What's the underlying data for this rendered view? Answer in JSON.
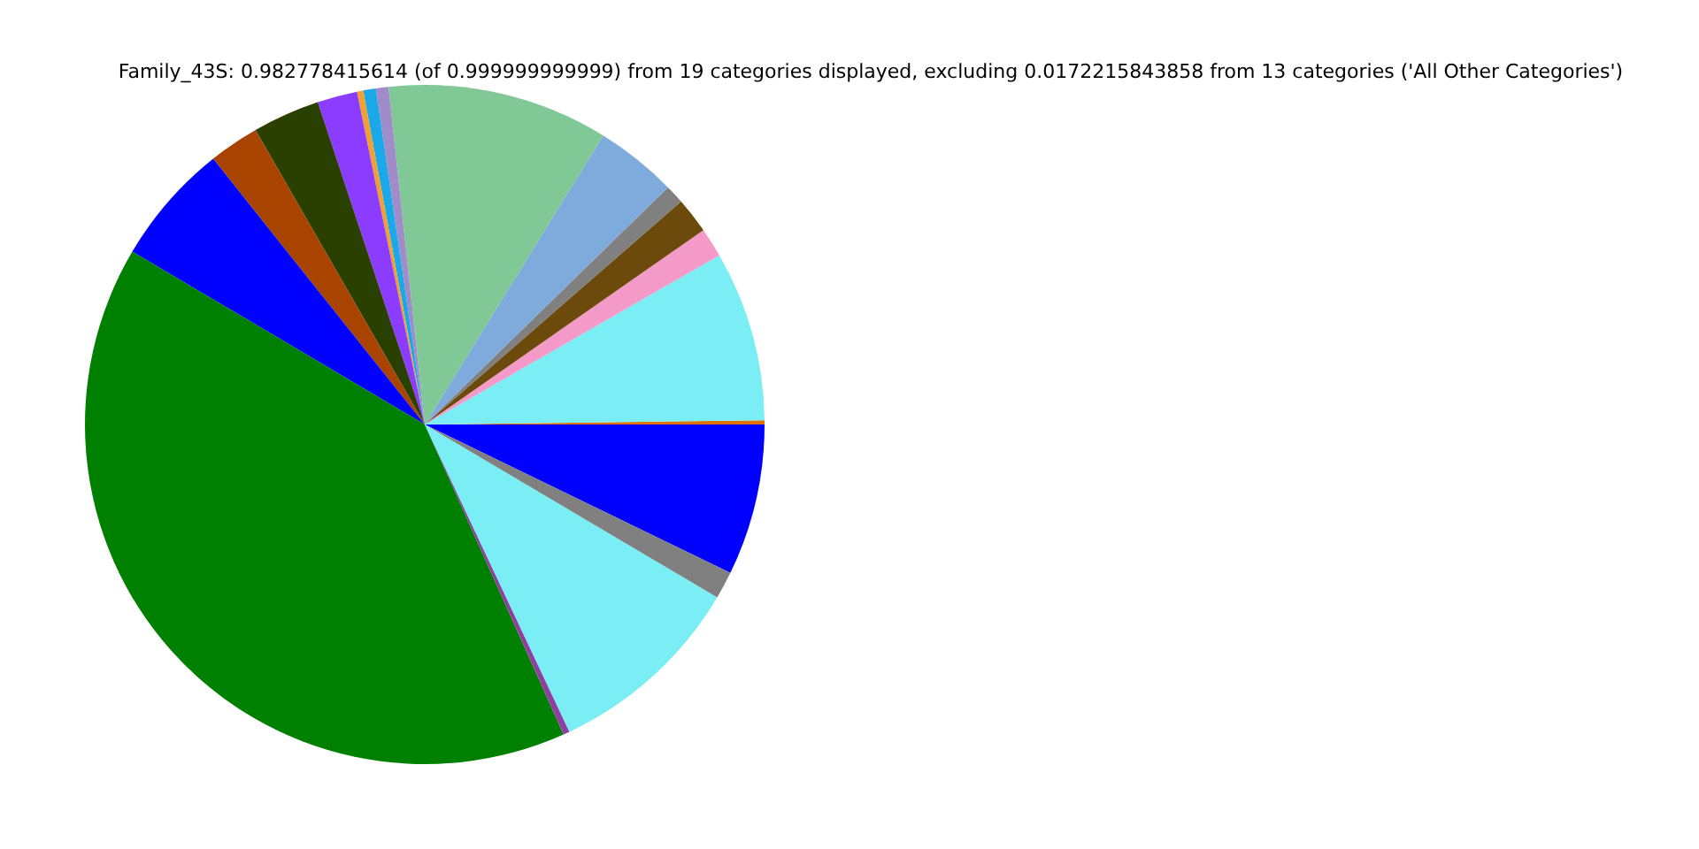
{
  "chart_data": {
    "type": "pie",
    "title": "Family_43S: 0.982778415614 (of 0.999999999999) from 19 categories displayed, excluding 0.0172215843858 from 13 categories ('All Other Categories')",
    "categories": [
      null,
      null,
      null,
      null,
      null,
      null,
      null,
      null,
      null,
      null,
      null,
      null,
      null,
      null,
      null,
      null,
      null,
      null,
      null
    ],
    "values": [
      7.2,
      0.2,
      8.1,
      1.4,
      1.7,
      0.9,
      3.9,
      10.5,
      0.6,
      0.6,
      0.3,
      1.9,
      3.2,
      2.4,
      5.8,
      40.2,
      0.3,
      9.5,
      1.3
    ],
    "colors": [
      "#0000ff",
      "#e07000",
      "#7aeef4",
      "#f49ac8",
      "#6b4a0c",
      "#808080",
      "#7eaadc",
      "#80c896",
      "#a08cc8",
      "#1aa8e8",
      "#f0a030",
      "#8c3cff",
      "#2a4000",
      "#a84400",
      "#0000ff",
      "#008000",
      "#8e3fa0",
      "#7aeef4",
      "#808080"
    ],
    "legend": false
  }
}
